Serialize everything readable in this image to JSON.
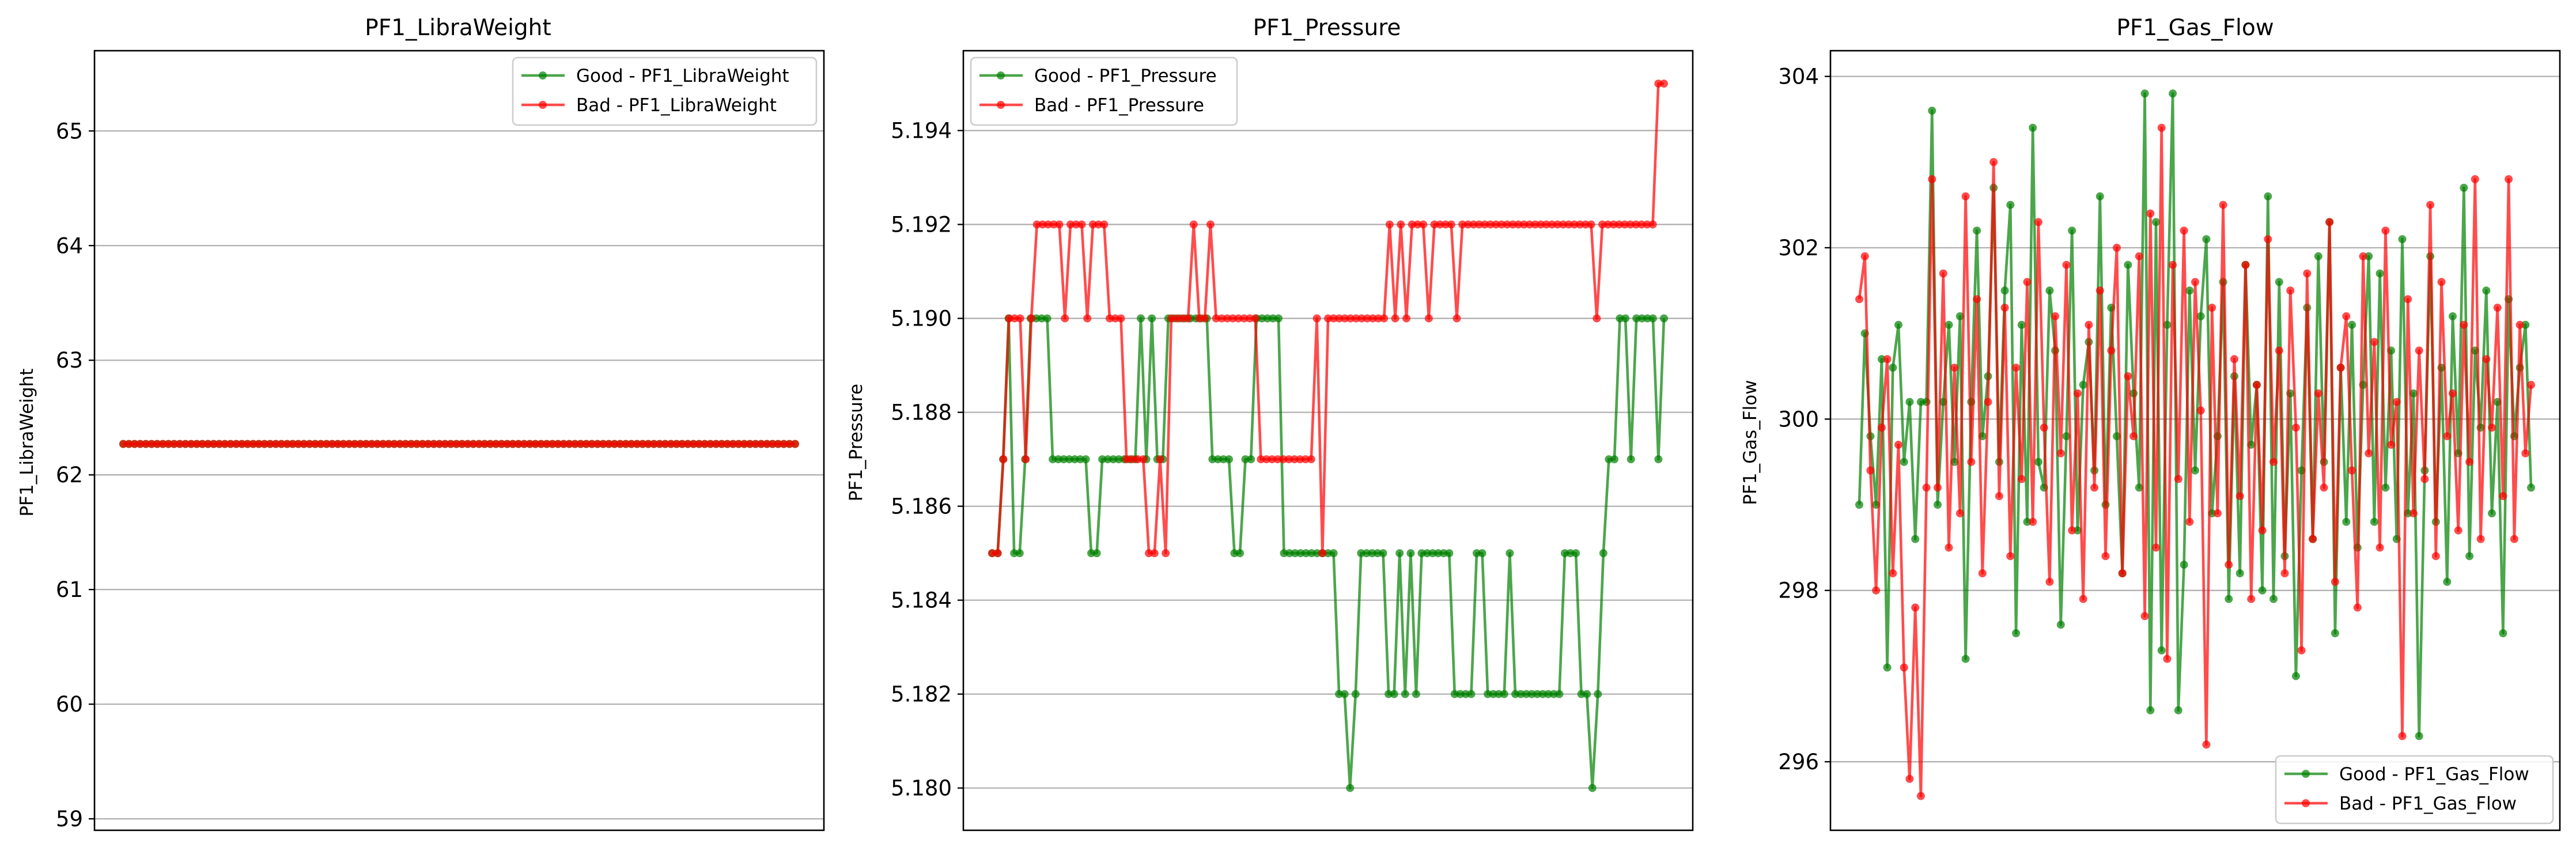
{
  "colors": {
    "good": "#008000",
    "bad": "#ff0000",
    "grid": "#b0b0b0",
    "axis": "#000000"
  },
  "chart_data": [
    {
      "type": "line",
      "title": "PF1_LibraWeight",
      "xlabel": "",
      "ylabel": "PF1_LibraWeight",
      "ylim": [
        58.9,
        65.7
      ],
      "yticks": [
        59,
        60,
        61,
        62,
        63,
        64,
        65
      ],
      "ytick_labels": [
        "59",
        "60",
        "61",
        "62",
        "63",
        "64",
        "65"
      ],
      "x_ticks_visible": false,
      "grid": "y",
      "legend": "top-right",
      "series": [
        {
          "name": "Good - PF1_LibraWeight",
          "color": "#008000",
          "values": [
            62.27,
            62.27,
            62.27,
            62.27,
            62.27,
            62.27,
            62.27,
            62.27,
            62.27,
            62.27,
            62.27,
            62.27,
            62.27,
            62.27,
            62.27,
            62.27,
            62.27,
            62.27,
            62.27,
            62.27,
            62.27,
            62.27,
            62.27,
            62.27,
            62.27,
            62.27,
            62.27,
            62.27,
            62.27,
            62.27,
            62.27,
            62.27,
            62.27,
            62.27,
            62.27,
            62.27,
            62.27,
            62.27,
            62.27,
            62.27,
            62.27,
            62.27,
            62.27,
            62.27,
            62.27,
            62.27,
            62.27,
            62.27,
            62.27,
            62.27,
            62.27,
            62.27,
            62.27,
            62.27,
            62.27,
            62.27,
            62.27,
            62.27,
            62.27,
            62.27,
            62.27,
            62.27,
            62.27,
            62.27,
            62.27,
            62.27,
            62.27,
            62.27,
            62.27,
            62.27,
            62.27,
            62.27,
            62.27,
            62.27,
            62.27,
            62.27,
            62.27,
            62.27,
            62.27,
            62.27,
            62.27,
            62.27,
            62.27,
            62.27,
            62.27,
            62.27,
            62.27,
            62.27,
            62.27,
            62.27,
            62.27,
            62.27,
            62.27,
            62.27,
            62.27,
            62.27,
            62.27,
            62.27,
            62.27,
            62.27,
            62.27,
            62.27,
            62.27,
            62.27,
            62.27,
            62.27,
            62.27,
            62.27,
            62.27,
            62.27,
            62.27,
            62.27,
            62.27,
            62.27,
            62.27,
            62.27,
            62.27,
            62.27,
            62.27,
            62.27
          ]
        },
        {
          "name": "Bad - PF1_LibraWeight",
          "color": "#ff0000",
          "values": [
            62.27,
            62.27,
            62.27,
            62.27,
            62.27,
            62.27,
            62.27,
            62.27,
            62.27,
            62.27,
            62.27,
            62.27,
            62.27,
            62.27,
            62.27,
            62.27,
            62.27,
            62.27,
            62.27,
            62.27,
            62.27,
            62.27,
            62.27,
            62.27,
            62.27,
            62.27,
            62.27,
            62.27,
            62.27,
            62.27,
            62.27,
            62.27,
            62.27,
            62.27,
            62.27,
            62.27,
            62.27,
            62.27,
            62.27,
            62.27,
            62.27,
            62.27,
            62.27,
            62.27,
            62.27,
            62.27,
            62.27,
            62.27,
            62.27,
            62.27,
            62.27,
            62.27,
            62.27,
            62.27,
            62.27,
            62.27,
            62.27,
            62.27,
            62.27,
            62.27,
            62.27,
            62.27,
            62.27,
            62.27,
            62.27,
            62.27,
            62.27,
            62.27,
            62.27,
            62.27,
            62.27,
            62.27,
            62.27,
            62.27,
            62.27,
            62.27,
            62.27,
            62.27,
            62.27,
            62.27,
            62.27,
            62.27,
            62.27,
            62.27,
            62.27,
            62.27,
            62.27,
            62.27,
            62.27,
            62.27,
            62.27,
            62.27,
            62.27,
            62.27,
            62.27,
            62.27,
            62.27,
            62.27,
            62.27,
            62.27,
            62.27,
            62.27,
            62.27,
            62.27,
            62.27,
            62.27,
            62.27,
            62.27,
            62.27,
            62.27,
            62.27,
            62.27,
            62.27,
            62.27,
            62.27,
            62.27,
            62.27,
            62.27,
            62.27,
            62.27
          ]
        }
      ]
    },
    {
      "type": "line",
      "title": "PF1_Pressure",
      "xlabel": "",
      "ylabel": "PF1_Pressure",
      "ylim": [
        5.1791,
        5.1957
      ],
      "yticks": [
        5.18,
        5.182,
        5.184,
        5.186,
        5.188,
        5.19,
        5.192,
        5.194
      ],
      "ytick_labels": [
        "5.180",
        "5.182",
        "5.184",
        "5.186",
        "5.188",
        "5.190",
        "5.192",
        "5.194"
      ],
      "x_ticks_visible": false,
      "grid": "y",
      "legend": "top-left",
      "series": [
        {
          "name": "Good - PF1_Pressure",
          "color": "#008000",
          "values": [
            5.185,
            5.185,
            5.187,
            5.19,
            5.185,
            5.185,
            5.187,
            5.19,
            5.19,
            5.19,
            5.19,
            5.187,
            5.187,
            5.187,
            5.187,
            5.187,
            5.187,
            5.187,
            5.185,
            5.185,
            5.187,
            5.187,
            5.187,
            5.187,
            5.187,
            5.187,
            5.187,
            5.19,
            5.187,
            5.19,
            5.187,
            5.187,
            5.19,
            5.19,
            5.19,
            5.19,
            5.19,
            5.19,
            5.19,
            5.19,
            5.187,
            5.187,
            5.187,
            5.187,
            5.185,
            5.185,
            5.187,
            5.187,
            5.19,
            5.19,
            5.19,
            5.19,
            5.19,
            5.185,
            5.185,
            5.185,
            5.185,
            5.185,
            5.185,
            5.185,
            5.185,
            5.185,
            5.185,
            5.182,
            5.182,
            5.18,
            5.182,
            5.185,
            5.185,
            5.185,
            5.185,
            5.185,
            5.182,
            5.182,
            5.185,
            5.182,
            5.185,
            5.182,
            5.185,
            5.185,
            5.185,
            5.185,
            5.185,
            5.185,
            5.182,
            5.182,
            5.182,
            5.182,
            5.185,
            5.185,
            5.182,
            5.182,
            5.182,
            5.182,
            5.185,
            5.182,
            5.182,
            5.182,
            5.182,
            5.182,
            5.182,
            5.182,
            5.182,
            5.182,
            5.185,
            5.185,
            5.185,
            5.182,
            5.182,
            5.18,
            5.182,
            5.185,
            5.187,
            5.187,
            5.19,
            5.19,
            5.187,
            5.19,
            5.19,
            5.19,
            5.19,
            5.187,
            5.19
          ]
        },
        {
          "name": "Bad - PF1_Pressure",
          "color": "#ff0000",
          "values": [
            5.185,
            5.185,
            5.187,
            5.19,
            5.19,
            5.19,
            5.187,
            5.19,
            5.192,
            5.192,
            5.192,
            5.192,
            5.192,
            5.19,
            5.192,
            5.192,
            5.192,
            5.19,
            5.192,
            5.192,
            5.192,
            5.19,
            5.19,
            5.19,
            5.187,
            5.187,
            5.187,
            5.187,
            5.185,
            5.185,
            5.187,
            5.185,
            5.19,
            5.19,
            5.19,
            5.19,
            5.192,
            5.19,
            5.19,
            5.192,
            5.19,
            5.19,
            5.19,
            5.19,
            5.19,
            5.19,
            5.19,
            5.19,
            5.187,
            5.187,
            5.187,
            5.187,
            5.187,
            5.187,
            5.187,
            5.187,
            5.187,
            5.187,
            5.19,
            5.185,
            5.19,
            5.19,
            5.19,
            5.19,
            5.19,
            5.19,
            5.19,
            5.19,
            5.19,
            5.19,
            5.19,
            5.192,
            5.19,
            5.192,
            5.19,
            5.192,
            5.192,
            5.192,
            5.19,
            5.192,
            5.192,
            5.192,
            5.192,
            5.19,
            5.192,
            5.192,
            5.192,
            5.192,
            5.192,
            5.192,
            5.192,
            5.192,
            5.192,
            5.192,
            5.192,
            5.192,
            5.192,
            5.192,
            5.192,
            5.192,
            5.192,
            5.192,
            5.192,
            5.192,
            5.192,
            5.192,
            5.192,
            5.192,
            5.19,
            5.192,
            5.192,
            5.192,
            5.192,
            5.192,
            5.192,
            5.192,
            5.192,
            5.192,
            5.192,
            5.195,
            5.195
          ]
        }
      ]
    },
    {
      "type": "line",
      "title": "PF1_Gas_Flow",
      "xlabel": "",
      "ylabel": "PF1_Gas_Flow",
      "ylim": [
        295.2,
        304.3
      ],
      "yticks": [
        296,
        298,
        300,
        302,
        304
      ],
      "ytick_labels": [
        "296",
        "298",
        "300",
        "302",
        "304"
      ],
      "x_ticks_visible": false,
      "grid": "y",
      "legend": "bottom-right",
      "series": [
        {
          "name": "Good - PF1_Gas_Flow",
          "color": "#008000",
          "values": [
            299,
            301,
            299.8,
            299,
            300.7,
            297.1,
            300.6,
            301.1,
            299.5,
            300.2,
            298.6,
            300.2,
            300.2,
            303.6,
            299,
            300.2,
            301.1,
            299.5,
            301.2,
            297.2,
            300.2,
            302.2,
            299.8,
            300.5,
            302.7,
            299.5,
            301.5,
            302.5,
            297.5,
            301.1,
            298.8,
            303.4,
            299.5,
            299.2,
            301.5,
            300.8,
            297.6,
            299.8,
            302.2,
            298.7,
            300.4,
            300.9,
            299.4,
            302.6,
            299,
            301.3,
            299.8,
            298.2,
            301.8,
            300.3,
            299.2,
            303.8,
            296.6,
            302.3,
            297.3,
            301.1,
            303.8,
            296.6,
            298.3,
            301.5,
            299.4,
            301.2,
            302.1,
            298.9,
            299.8,
            301.6,
            297.9,
            300.5,
            298.2,
            301.8,
            299.7,
            300.4,
            298,
            302.6,
            297.9,
            301.6,
            298.4,
            300.3,
            297,
            299.4,
            301.3,
            298.6,
            301.9,
            299.5,
            302.3,
            297.5,
            300.6,
            298.8,
            301.1,
            298.5,
            300.4,
            301.9,
            298.8,
            301.7,
            299.2,
            300.8,
            298.6,
            302.1,
            298.9,
            300.3,
            296.3,
            299.4,
            301.9,
            298.8,
            300.6,
            298.1,
            301.2,
            299.6,
            302.7,
            298.4,
            300.8,
            299.9,
            301.5,
            298.9,
            300.2,
            297.5,
            301.4,
            299.8,
            300.6,
            301.1,
            299.2
          ]
        },
        {
          "name": "Bad - PF1_Gas_Flow",
          "color": "#ff0000",
          "values": [
            301.4,
            301.9,
            299.4,
            298,
            299.9,
            300.7,
            298.2,
            299.7,
            297.1,
            295.8,
            297.8,
            295.6,
            299.2,
            302.8,
            299.2,
            301.7,
            298.5,
            300.6,
            298.9,
            302.6,
            299.5,
            301.4,
            298.2,
            300.2,
            303,
            299.1,
            301.3,
            298.4,
            300.6,
            299.3,
            301.6,
            298.8,
            302.3,
            299.9,
            298.1,
            301.2,
            299.6,
            301.8,
            298.7,
            300.3,
            297.9,
            301.1,
            299.2,
            301.5,
            298.4,
            300.8,
            302,
            298.2,
            300.5,
            299.8,
            301.9,
            297.7,
            302.4,
            298.5,
            303.4,
            297.2,
            301.8,
            299.3,
            302.2,
            298.8,
            301.6,
            300.1,
            296.2,
            301.3,
            298.9,
            302.5,
            298.3,
            300.7,
            299.1,
            301.8,
            297.9,
            300.4,
            298.7,
            302.1,
            299.5,
            300.8,
            298.2,
            301.5,
            299.9,
            297.3,
            301.7,
            298.6,
            300.3,
            299.2,
            302.3,
            298.1,
            300.6,
            301.2,
            299.4,
            297.8,
            301.9,
            299.6,
            300.9,
            298.5,
            302.2,
            299.7,
            300.2,
            296.3,
            301.4,
            298.9,
            300.8,
            299.3,
            302.5,
            298.4,
            301.6,
            299.8,
            300.3,
            298.7,
            301.1,
            299.5,
            302.8,
            298.6,
            300.7,
            299.9,
            301.3,
            299.1,
            302.8,
            298.6,
            301.1,
            299.6,
            300.4
          ]
        }
      ]
    }
  ]
}
